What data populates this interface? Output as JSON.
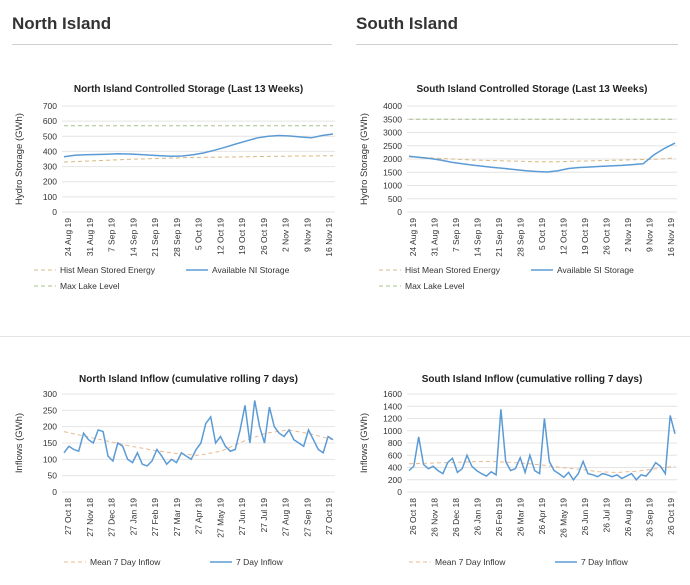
{
  "headers": {
    "north": "North Island",
    "south": "South Island"
  },
  "chart_data": [
    {
      "id": "ni-storage",
      "type": "line",
      "title": "North Island Controlled Storage (Last 13 Weeks)",
      "ylabel": "Hydro Storage (GWh)",
      "ylim": [
        0,
        700
      ],
      "yticks": [
        0,
        100,
        200,
        300,
        400,
        500,
        600,
        700
      ],
      "x_labels": [
        "24 Aug 19",
        "31 Aug 19",
        "7 Sep 19",
        "14 Sep 19",
        "21 Sep 19",
        "28 Sep 19",
        "5 Oct 19",
        "12 Oct 19",
        "19 Oct 19",
        "26 Oct 19",
        "2 Nov 19",
        "9 Nov 19",
        "16 Nov 19"
      ],
      "grid": true,
      "legend_position": "bottom",
      "series": [
        {
          "name": "Hist Mean Stored Energy",
          "style": "dashed",
          "color": "#d8b882",
          "values": [
            330,
            333,
            336,
            339,
            342,
            345,
            348,
            350,
            352,
            354,
            356,
            358,
            360,
            361,
            362,
            363,
            364,
            365,
            366,
            367,
            368,
            369,
            370,
            370,
            371,
            371
          ]
        },
        {
          "name": "Available NI Storage",
          "style": "solid",
          "color": "#5b9bd5",
          "values": [
            365,
            375,
            378,
            380,
            382,
            385,
            383,
            380,
            376,
            372,
            368,
            370,
            378,
            390,
            408,
            428,
            450,
            470,
            490,
            500,
            505,
            502,
            495,
            490,
            505,
            515
          ]
        },
        {
          "name": "Max Lake Level",
          "style": "dashed",
          "color": "#a9c08a",
          "values": [
            570,
            570,
            570,
            570,
            570,
            570,
            570,
            570,
            570,
            570,
            570,
            570,
            570,
            570,
            570,
            570,
            570,
            570,
            570,
            570,
            570,
            570,
            570,
            570,
            570,
            570
          ]
        }
      ]
    },
    {
      "id": "si-storage",
      "type": "line",
      "title": "South Island Controlled Storage (Last 13 Weeks)",
      "ylabel": "Hydro Storage (GWh)",
      "ylim": [
        0,
        4000
      ],
      "yticks": [
        0,
        500,
        1000,
        1500,
        2000,
        2500,
        3000,
        3500,
        4000
      ],
      "x_labels": [
        "24 Aug 19",
        "31 Aug 19",
        "7 Sep 19",
        "14 Sep 19",
        "21 Sep 19",
        "28 Sep 19",
        "5 Oct 19",
        "12 Oct 19",
        "19 Oct 19",
        "26 Oct 19",
        "2 Nov 19",
        "9 Nov 19",
        "16 Nov 19"
      ],
      "grid": true,
      "legend_position": "bottom",
      "series": [
        {
          "name": "Hist Mean Stored Energy",
          "style": "dashed",
          "color": "#d8b882",
          "values": [
            2080,
            2060,
            2040,
            2020,
            2000,
            1980,
            1960,
            1950,
            1940,
            1930,
            1920,
            1910,
            1900,
            1900,
            1900,
            1910,
            1920,
            1930,
            1940,
            1950,
            1960,
            1970,
            1980,
            1990,
            2010,
            2040
          ]
        },
        {
          "name": "Available SI Storage",
          "style": "solid",
          "color": "#5b9bd5",
          "values": [
            2100,
            2060,
            2020,
            1960,
            1880,
            1820,
            1770,
            1720,
            1680,
            1640,
            1600,
            1560,
            1530,
            1510,
            1560,
            1640,
            1680,
            1700,
            1720,
            1740,
            1760,
            1790,
            1820,
            2150,
            2400,
            2600
          ]
        },
        {
          "name": "Max Lake Level",
          "style": "dashed",
          "color": "#a9c08a",
          "values": [
            3500,
            3500,
            3500,
            3500,
            3500,
            3500,
            3500,
            3500,
            3500,
            3500,
            3500,
            3500,
            3500,
            3500,
            3500,
            3500,
            3500,
            3500,
            3500,
            3500,
            3500,
            3500,
            3500,
            3500,
            3500,
            3500
          ]
        }
      ]
    },
    {
      "id": "ni-inflow",
      "type": "line",
      "title": "North Island Inflow (cumulative rolling 7 days)",
      "ylabel": "Inflows (GWh)",
      "ylim": [
        0,
        300
      ],
      "yticks": [
        0,
        50,
        100,
        150,
        200,
        250,
        300
      ],
      "x_labels": [
        "27 Oct 18",
        "27 Nov 18",
        "27 Dec 18",
        "27 Jan 19",
        "27 Feb 19",
        "27 Mar 19",
        "27 Apr 19",
        "27 May 19",
        "27 Jun 19",
        "27 Jul 19",
        "27 Aug 19",
        "27 Sep 19",
        "27 Oct 19"
      ],
      "grid": true,
      "legend_position": "bottom",
      "series": [
        {
          "name": "Mean 7 Day Inflow",
          "style": "dashed",
          "color": "#e8b98e",
          "values": [
            185,
            170,
            155,
            140,
            128,
            118,
            112,
            125,
            155,
            180,
            190,
            178,
            160
          ]
        },
        {
          "name": "7 Day Inflow",
          "style": "solid",
          "color": "#5b9bd5",
          "values": [
            120,
            140,
            130,
            125,
            180,
            160,
            150,
            190,
            185,
            110,
            95,
            150,
            140,
            100,
            90,
            120,
            85,
            80,
            95,
            130,
            110,
            85,
            100,
            90,
            120,
            110,
            100,
            130,
            150,
            210,
            230,
            150,
            170,
            140,
            125,
            130,
            190,
            265,
            150,
            280,
            200,
            150,
            260,
            200,
            180,
            170,
            190,
            160,
            150,
            140,
            190,
            160,
            130,
            120,
            170,
            160
          ]
        }
      ]
    },
    {
      "id": "si-inflow",
      "type": "line",
      "title": "South Island Inflow (cumulative rolling 7 days)",
      "ylabel": "Inflows (GWh)",
      "ylim": [
        0,
        1600
      ],
      "yticks": [
        0,
        200,
        400,
        600,
        800,
        1000,
        1200,
        1400,
        1600
      ],
      "x_labels": [
        "26 Oct 18",
        "26 Nov 18",
        "26 Dec 18",
        "26 Jan 19",
        "26 Feb 19",
        "26 Mar 19",
        "26 Apr 19",
        "26 May 19",
        "26 Jun 19",
        "26 Jul 19",
        "26 Aug 19",
        "26 Sep 19",
        "26 Oct 19"
      ],
      "grid": true,
      "legend_position": "bottom",
      "series": [
        {
          "name": "Mean 7 Day Inflow",
          "style": "dashed",
          "color": "#e8b98e",
          "values": [
            460,
            470,
            480,
            490,
            500,
            490,
            470,
            440,
            400,
            370,
            330,
            320,
            340,
            380,
            420
          ]
        },
        {
          "name": "7 Day Inflow",
          "style": "solid",
          "color": "#5b9bd5",
          "values": [
            350,
            420,
            900,
            450,
            380,
            420,
            350,
            300,
            480,
            550,
            320,
            380,
            600,
            420,
            350,
            300,
            260,
            330,
            280,
            1350,
            500,
            350,
            380,
            560,
            320,
            600,
            350,
            300,
            1200,
            500,
            350,
            300,
            240,
            320,
            200,
            300,
            500,
            300,
            280,
            250,
            300,
            280,
            250,
            280,
            220,
            260,
            300,
            200,
            280,
            260,
            350,
            480,
            420,
            300,
            1250,
            950
          ]
        }
      ]
    }
  ]
}
